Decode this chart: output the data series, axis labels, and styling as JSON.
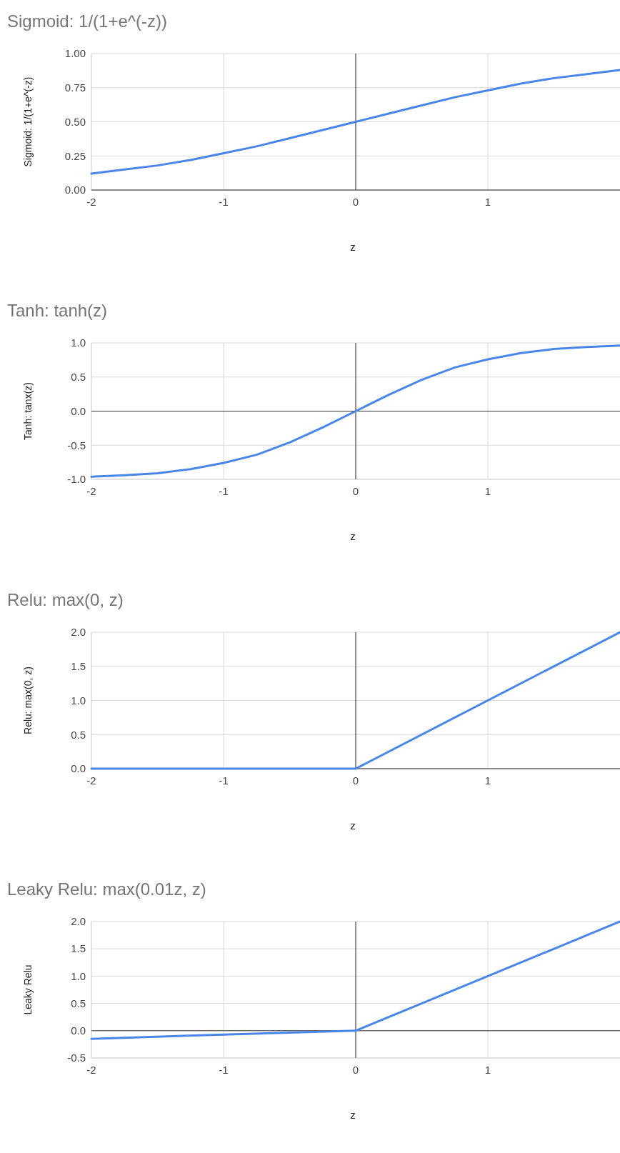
{
  "chart_data": [
    {
      "type": "line",
      "title": "Sigmoid: 1/(1+e^(-z))",
      "xlabel": "z",
      "ylabel": "Sigmoid: 1/(1+e^(-z)",
      "grid": true,
      "xlim": [
        -2,
        2
      ],
      "xticks": [
        -2,
        -1,
        0,
        1
      ],
      "ylim": [
        0,
        1
      ],
      "yticks": [
        {
          "value": 0,
          "label": "0.00"
        },
        {
          "value": 0.25,
          "label": "0.25"
        },
        {
          "value": 0.5,
          "label": "0.50"
        },
        {
          "value": 0.75,
          "label": "0.75"
        },
        {
          "value": 1,
          "label": "1.00"
        }
      ],
      "x": [
        -2,
        -1.75,
        -1.5,
        -1.25,
        -1,
        -0.75,
        -0.5,
        -0.25,
        0,
        0.25,
        0.5,
        0.75,
        1,
        1.25,
        1.5,
        1.75,
        2
      ],
      "series": [
        {
          "color": "#4a86e8",
          "values": [
            0.12,
            0.15,
            0.18,
            0.22,
            0.27,
            0.32,
            0.38,
            0.44,
            0.5,
            0.56,
            0.62,
            0.68,
            0.73,
            0.78,
            0.82,
            0.85,
            0.88
          ]
        }
      ]
    },
    {
      "type": "line",
      "title": "Tanh: tanh(z)",
      "xlabel": "z",
      "ylabel": "Tanh: tanx(z)",
      "grid": true,
      "xlim": [
        -2,
        2
      ],
      "xticks": [
        -2,
        -1,
        0,
        1
      ],
      "ylim": [
        -1,
        1
      ],
      "yticks": [
        {
          "value": -1,
          "label": "-1.0"
        },
        -0.5,
        {
          "value": 0,
          "label": "0.0"
        },
        0.5,
        {
          "value": 1,
          "label": "1.0"
        }
      ],
      "x": [
        -2,
        -1.75,
        -1.5,
        -1.25,
        -1,
        -0.75,
        -0.5,
        -0.25,
        0,
        0.25,
        0.5,
        0.75,
        1,
        1.25,
        1.5,
        1.75,
        2
      ],
      "series": [
        {
          "color": "#4a86e8",
          "values": [
            -0.96,
            -0.94,
            -0.91,
            -0.85,
            -0.76,
            -0.64,
            -0.46,
            -0.24,
            0,
            0.24,
            0.46,
            0.64,
            0.76,
            0.85,
            0.91,
            0.94,
            0.96
          ]
        }
      ]
    },
    {
      "type": "line",
      "title": "Relu: max(0, z)",
      "xlabel": "z",
      "ylabel": "Relu: max(0, z)",
      "grid": true,
      "xlim": [
        -2,
        2
      ],
      "xticks": [
        -2,
        -1,
        0,
        1
      ],
      "ylim": [
        0,
        2
      ],
      "yticks": [
        {
          "value": 0,
          "label": "0.0"
        },
        0.5,
        {
          "value": 1,
          "label": "1.0"
        },
        1.5,
        {
          "value": 2,
          "label": "2.0"
        }
      ],
      "x": [
        -2,
        0,
        2
      ],
      "series": [
        {
          "color": "#4a86e8",
          "values": [
            0,
            0,
            2
          ]
        }
      ]
    },
    {
      "type": "line",
      "title": "Leaky Relu: max(0.01z, z)",
      "xlabel": "z",
      "ylabel": "Leaky Relu",
      "grid": true,
      "xlim": [
        -2,
        2
      ],
      "xticks": [
        -2,
        -1,
        0,
        1
      ],
      "ylim": [
        -0.5,
        2
      ],
      "yticks": [
        -0.5,
        {
          "value": 0,
          "label": "0.0"
        },
        0.5,
        {
          "value": 1,
          "label": "1.0"
        },
        1.5,
        {
          "value": 2,
          "label": "2.0"
        }
      ],
      "x": [
        -2,
        -1,
        0,
        1,
        2
      ],
      "series": [
        {
          "color": "#4a86e8",
          "values": [
            -0.15,
            -0.07,
            0,
            1,
            2
          ]
        }
      ]
    }
  ]
}
